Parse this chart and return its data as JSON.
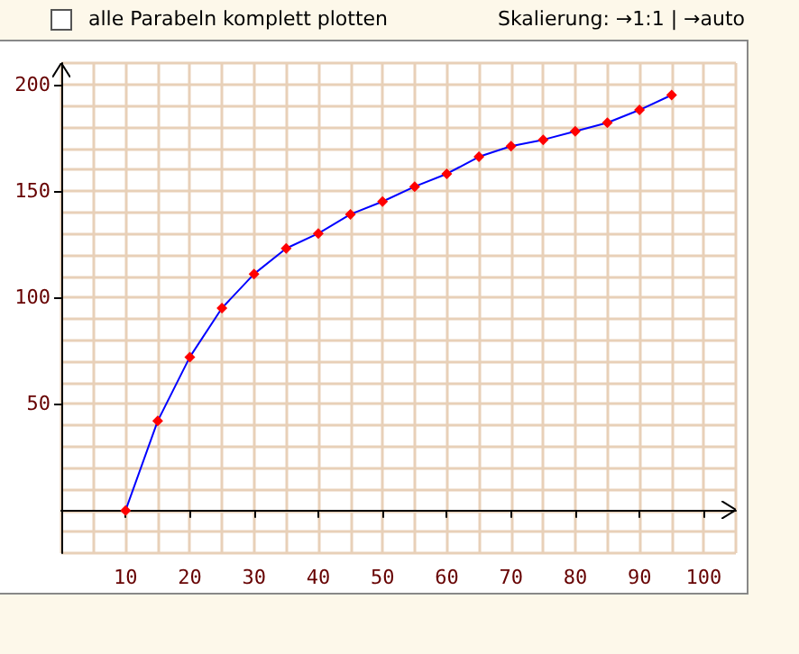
{
  "chart_data": {
    "type": "line",
    "annotations": [
      "alle Parabeln komplett plotten",
      "Skalierung: →1:1 | →auto"
    ],
    "x": [
      10,
      15,
      20,
      25,
      30,
      35,
      40,
      45,
      50,
      55,
      60,
      65,
      70,
      75,
      80,
      85,
      90,
      95
    ],
    "series": [
      {
        "color": "#0000ff",
        "colors": [
          "#ff0000",
          "#ff0000",
          "#ff0000",
          "#ff0000",
          "#ff0000",
          "#ff0000",
          "#ff0000",
          "#ff0000",
          "#ff0000",
          "#ff0000",
          "#ff0000",
          "#ff0000",
          "#ff0000",
          "#ff0000",
          "#ff0000",
          "#ff0000",
          "#ff0000",
          "#ff0000"
        ],
        "values": [
          0,
          42,
          72,
          95,
          111,
          123,
          130,
          139,
          145,
          152,
          158,
          166,
          171,
          174,
          178,
          182,
          188,
          195
        ]
      }
    ],
    "xlim": [
      0,
      105
    ],
    "ylim": [
      -20,
      210
    ],
    "xticks": [
      10,
      20,
      30,
      40,
      50,
      60,
      70,
      80,
      90,
      100
    ],
    "yticks": [
      50,
      100,
      150,
      200
    ],
    "grid": true,
    "marker": "diamond",
    "line_style": "solid"
  }
}
